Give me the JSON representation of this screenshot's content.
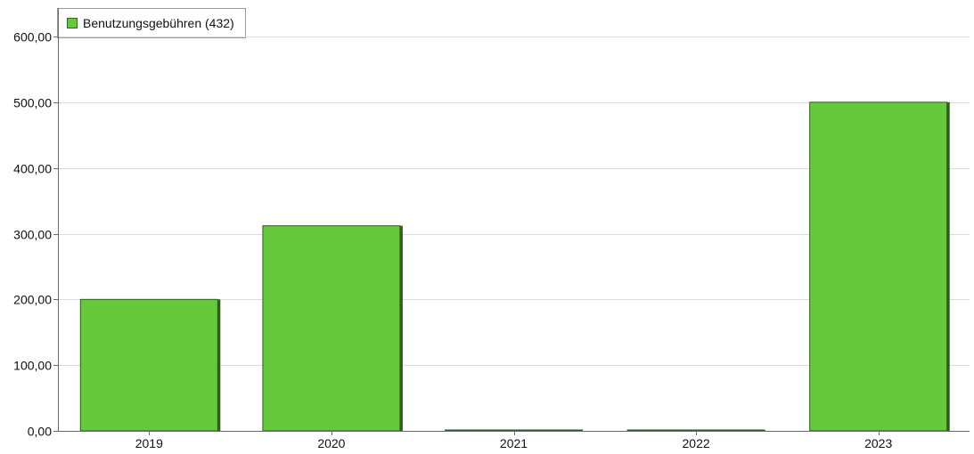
{
  "chart_data": {
    "type": "bar",
    "categories": [
      "2019",
      "2020",
      "2021",
      "2022",
      "2023"
    ],
    "series": [
      {
        "name": "Benutzungsgebühren (432)",
        "values": [
          200,
          312,
          0,
          0,
          500
        ]
      }
    ],
    "ylim": [
      0,
      600
    ],
    "yticks": [
      "0,00",
      "100,00",
      "200,00",
      "300,00",
      "400,00",
      "500,00",
      "600,00"
    ],
    "grid": true,
    "legend": "top-left",
    "colors": {
      "bar": "#66c93c",
      "bar_edge": "#2f5e1a",
      "grid": "#dcdcdc",
      "axis": "#6b6b6b"
    }
  }
}
